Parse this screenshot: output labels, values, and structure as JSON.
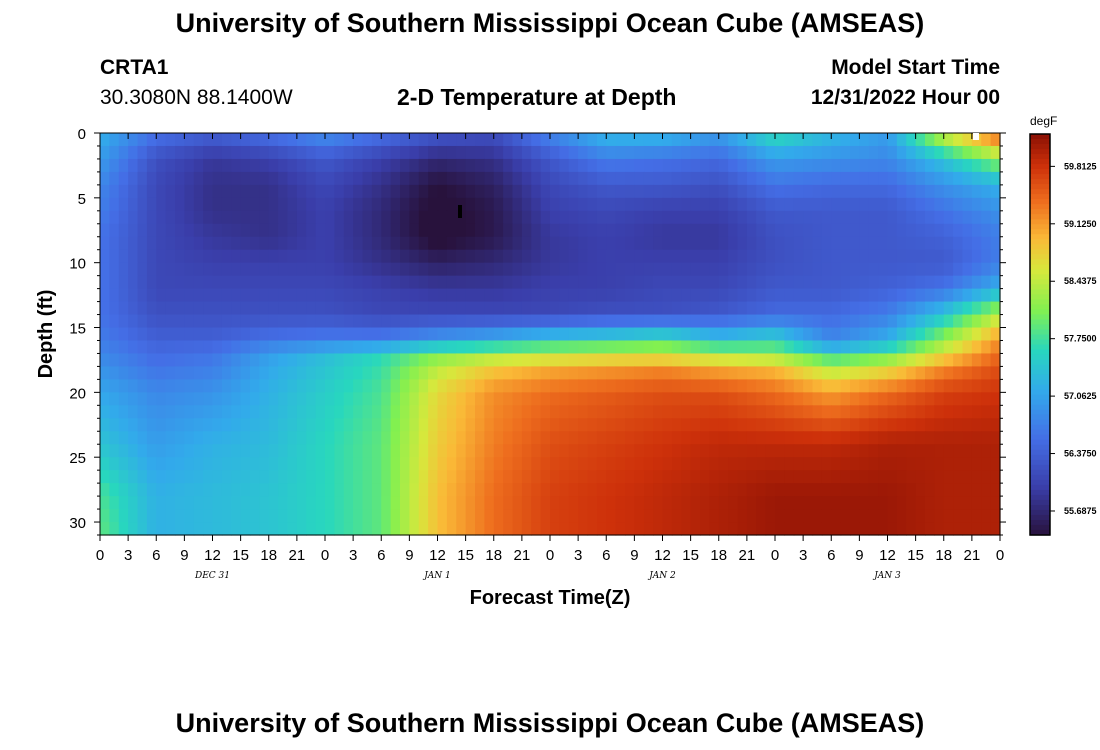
{
  "header": {
    "title": "University of Southern Mississippi Ocean Cube (AMSEAS)",
    "station": "CRTA1",
    "coords": "30.3080N  88.1400W",
    "plot_title": "2-D Temperature at Depth",
    "model_label": "Model Start Time",
    "model_time": "12/31/2022 Hour 00"
  },
  "footer": {
    "title": "University of Southern Mississippi Ocean Cube (AMSEAS)"
  },
  "chart_data": {
    "type": "heatmap",
    "title": "2-D Temperature at Depth",
    "xlabel": "Forecast Time(Z)",
    "ylabel": "Depth (ft)",
    "x_tick_labels": [
      "0",
      "3",
      "6",
      "9",
      "12",
      "15",
      "18",
      "21",
      "0",
      "3",
      "6",
      "9",
      "12",
      "15",
      "18",
      "21",
      "0",
      "3",
      "6",
      "9",
      "12",
      "15",
      "18",
      "21",
      "0",
      "3",
      "6",
      "9",
      "12",
      "15",
      "18",
      "21",
      "0"
    ],
    "x_range_hours": [
      0,
      96
    ],
    "date_labels": [
      {
        "label": "DEC 31",
        "hour": 12
      },
      {
        "label": "JAN 1",
        "hour": 36
      },
      {
        "label": "JAN 2",
        "hour": 60
      },
      {
        "label": "JAN 3",
        "hour": 84
      }
    ],
    "y_ticks": [
      0,
      5,
      10,
      15,
      20,
      25,
      30
    ],
    "ylim": [
      0,
      31
    ],
    "y_inverted": true,
    "colorbar": {
      "unit": "degF",
      "tick_labels": [
        "59.8125",
        "59.1250",
        "58.4375",
        "57.7500",
        "57.0625",
        "56.3750",
        "55.6875"
      ],
      "min": 55.4,
      "max": 60.2
    },
    "depth_rows": [
      0,
      2,
      4,
      6,
      8,
      10,
      12,
      14,
      16,
      17,
      18,
      20,
      24,
      28,
      31
    ],
    "time_hours": [
      0,
      6,
      12,
      18,
      24,
      30,
      36,
      42,
      48,
      54,
      60,
      66,
      72,
      78,
      84,
      90,
      96
    ],
    "values": [
      [
        57.2,
        56.6,
        56.4,
        56.6,
        56.9,
        56.6,
        56.3,
        56.2,
        56.8,
        57.3,
        57.3,
        57.0,
        57.7,
        57.3,
        57.0,
        58.6,
        59.6
      ],
      [
        57.0,
        56.2,
        55.9,
        56.0,
        56.3,
        56.0,
        55.7,
        55.8,
        56.3,
        56.7,
        56.6,
        56.5,
        57.0,
        56.9,
        56.8,
        57.4,
        58.2
      ],
      [
        56.8,
        56.1,
        55.8,
        55.8,
        56.1,
        55.8,
        55.4,
        55.6,
        56.1,
        56.3,
        56.3,
        56.2,
        56.6,
        56.5,
        56.5,
        56.9,
        57.2
      ],
      [
        56.7,
        56.1,
        55.8,
        55.8,
        56.0,
        55.7,
        55.3,
        55.5,
        56.0,
        56.1,
        56.0,
        56.0,
        56.3,
        56.3,
        56.3,
        56.6,
        56.9
      ],
      [
        56.6,
        56.1,
        55.9,
        55.8,
        56.0,
        55.7,
        55.3,
        55.5,
        55.9,
        56.0,
        55.9,
        55.9,
        56.2,
        56.3,
        56.3,
        56.4,
        56.7
      ],
      [
        56.6,
        56.1,
        56.0,
        56.0,
        56.0,
        55.8,
        55.6,
        55.7,
        55.9,
        56.0,
        56.0,
        56.0,
        56.2,
        56.3,
        56.3,
        56.3,
        56.7
      ],
      [
        56.6,
        56.1,
        56.1,
        56.1,
        56.1,
        56.0,
        55.9,
        55.9,
        56.0,
        56.0,
        56.1,
        56.1,
        56.3,
        56.3,
        56.4,
        56.6,
        57.2
      ],
      [
        56.6,
        56.2,
        56.2,
        56.2,
        56.2,
        56.1,
        56.1,
        56.1,
        56.1,
        56.2,
        56.2,
        56.3,
        56.5,
        56.5,
        56.7,
        57.4,
        58.4
      ],
      [
        56.7,
        56.4,
        56.4,
        56.6,
        56.7,
        56.7,
        57.0,
        57.2,
        57.5,
        57.6,
        57.8,
        57.4,
        57.6,
        56.8,
        57.2,
        58.2,
        59.2
      ],
      [
        56.8,
        56.5,
        56.6,
        57.0,
        57.3,
        57.6,
        58.0,
        58.2,
        58.3,
        58.4,
        58.4,
        58.2,
        58.1,
        57.5,
        57.8,
        58.6,
        59.4
      ],
      [
        56.9,
        56.6,
        56.7,
        57.1,
        57.4,
        57.7,
        58.4,
        58.8,
        59.0,
        59.1,
        59.2,
        59.0,
        58.9,
        58.3,
        58.6,
        59.2,
        59.6
      ],
      [
        57.1,
        56.8,
        56.9,
        57.2,
        57.5,
        57.8,
        58.7,
        59.2,
        59.4,
        59.5,
        59.6,
        59.6,
        59.4,
        59.1,
        59.4,
        59.7,
        59.8
      ],
      [
        57.4,
        57.0,
        57.2,
        57.3,
        57.6,
        57.9,
        58.8,
        59.3,
        59.6,
        59.7,
        59.8,
        59.9,
        59.9,
        59.9,
        60.0,
        60.0,
        60.0
      ],
      [
        57.8,
        57.2,
        57.3,
        57.4,
        57.6,
        57.9,
        58.9,
        59.4,
        59.7,
        59.8,
        59.9,
        60.0,
        60.1,
        60.1,
        60.1,
        60.0,
        60.0
      ],
      [
        57.9,
        57.2,
        57.3,
        57.4,
        57.6,
        57.9,
        58.9,
        59.4,
        59.7,
        59.8,
        59.9,
        60.0,
        60.1,
        60.1,
        60.1,
        60.0,
        60.0
      ]
    ]
  }
}
